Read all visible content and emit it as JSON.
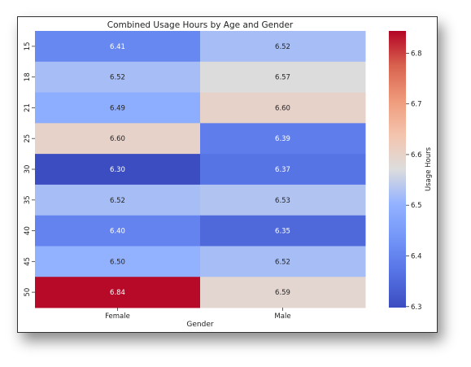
{
  "chart_data": {
    "type": "heatmap",
    "title": "Combined Usage Hours by Age and Gender",
    "xlabel": "Gender",
    "ylabel": "",
    "x_categories": [
      "Female",
      "Male"
    ],
    "y_categories": [
      "15",
      "18",
      "21",
      "25",
      "30",
      "35",
      "40",
      "45",
      "50"
    ],
    "values": [
      [
        6.41,
        6.52
      ],
      [
        6.52,
        6.57
      ],
      [
        6.49,
        6.6
      ],
      [
        6.6,
        6.39
      ],
      [
        6.3,
        6.37
      ],
      [
        6.52,
        6.53
      ],
      [
        6.4,
        6.35
      ],
      [
        6.5,
        6.52
      ],
      [
        6.84,
        6.59
      ]
    ],
    "value_labels": [
      [
        "6.41",
        "6.52"
      ],
      [
        "6.52",
        "6.57"
      ],
      [
        "6.49",
        "6.60"
      ],
      [
        "6.60",
        "6.39"
      ],
      [
        "6.30",
        "6.37"
      ],
      [
        "6.52",
        "6.53"
      ],
      [
        "6.40",
        "6.35"
      ],
      [
        "6.50",
        "6.52"
      ],
      [
        "6.84",
        "6.59"
      ]
    ],
    "colorbar": {
      "label": "Usage Hours",
      "range": [
        6.298,
        6.844
      ],
      "ticks": [
        6.3,
        6.4,
        6.5,
        6.6,
        6.7,
        6.8
      ],
      "tick_labels": [
        "6.3",
        "6.4",
        "6.5",
        "6.6",
        "6.7",
        "6.8"
      ],
      "colormap": "coolwarm"
    }
  }
}
